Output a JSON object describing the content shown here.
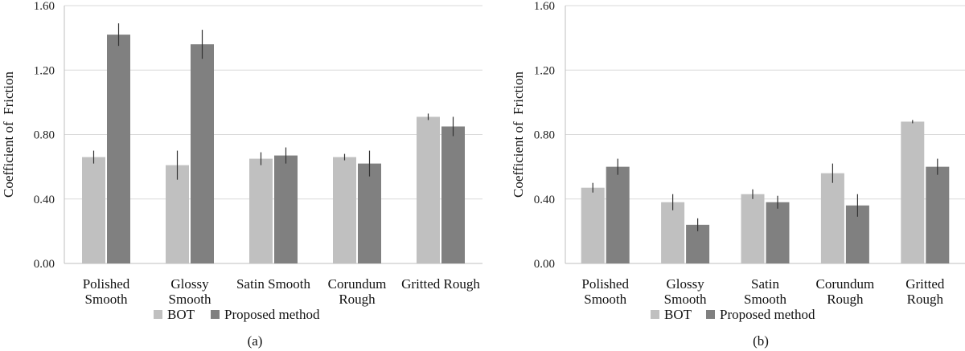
{
  "colors": {
    "bot": "#c0c0c0",
    "proposed": "#808080",
    "grid": "#d9d9d9",
    "axis": "#bfbfbf",
    "err": "#333333"
  },
  "legend": {
    "bot": "BOT",
    "proposed": "Proposed method"
  },
  "chart_data": [
    {
      "type": "bar",
      "caption": "(a)",
      "ylabel": "Coefficient of  Friction",
      "ylim": [
        0,
        1.6
      ],
      "yticks": [
        "0.00",
        "0.40",
        "0.80",
        "1.20",
        "1.60"
      ],
      "categories": [
        [
          "Polished",
          "Smooth"
        ],
        [
          "Glossy",
          "Smooth"
        ],
        [
          "Satin Smooth"
        ],
        [
          "Corundum",
          "Rough"
        ],
        [
          "Gritted Rough"
        ]
      ],
      "series": [
        {
          "name": "BOT",
          "values": [
            0.66,
            0.61,
            0.65,
            0.66,
            0.91
          ],
          "errors": [
            0.04,
            0.09,
            0.04,
            0.02,
            0.02
          ]
        },
        {
          "name": "Proposed method",
          "values": [
            1.42,
            1.36,
            0.67,
            0.62,
            0.85
          ],
          "errors": [
            0.07,
            0.09,
            0.05,
            0.08,
            0.06
          ]
        }
      ]
    },
    {
      "type": "bar",
      "caption": "(b)",
      "ylabel": "Coefficient of  Friction",
      "ylim": [
        0,
        1.6
      ],
      "yticks": [
        "0.00",
        "0.40",
        "0.80",
        "1.20",
        "1.60"
      ],
      "categories": [
        [
          "Polished",
          "Smooth"
        ],
        [
          "Glossy",
          "Smooth"
        ],
        [
          "Satin",
          "Smooth"
        ],
        [
          "Corundum",
          "Rough"
        ],
        [
          "Gritted",
          "Rough"
        ]
      ],
      "series": [
        {
          "name": "BOT",
          "values": [
            0.47,
            0.38,
            0.43,
            0.56,
            0.88
          ],
          "errors": [
            0.03,
            0.05,
            0.03,
            0.06,
            0.01
          ]
        },
        {
          "name": "Proposed method",
          "values": [
            0.6,
            0.24,
            0.38,
            0.36,
            0.6
          ],
          "errors": [
            0.05,
            0.04,
            0.04,
            0.07,
            0.05
          ]
        }
      ]
    }
  ]
}
